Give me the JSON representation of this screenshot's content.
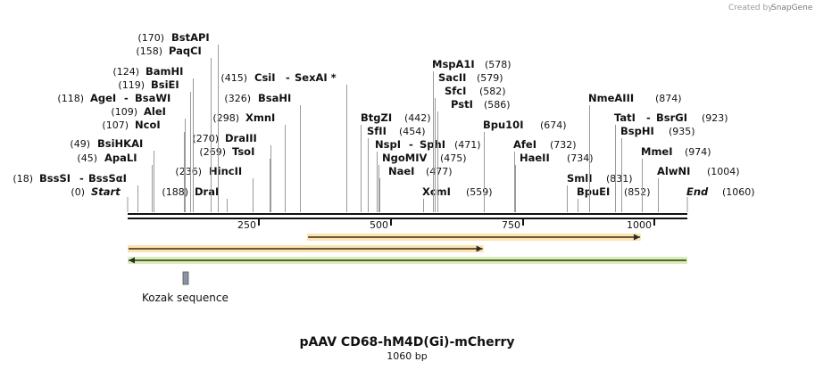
{
  "title": "pAAV CD68-hM4D(Gi)-mCherry",
  "length_label": "1060 bp",
  "total_bp": 1060,
  "branding": {
    "prefix": "Created by",
    "brand": "SnapGene"
  },
  "ticks": [
    "250",
    "500",
    "750",
    "1000"
  ],
  "ends": {
    "start": "Start",
    "start_pos": "(0)",
    "end": "End",
    "end_pos": "(1060)"
  },
  "sites": [
    {
      "name": "BssSI",
      "pos": "(18)",
      "bp": 18,
      "pair": "BssSαI"
    },
    {
      "name": "ApaLI",
      "pos": "(45)",
      "bp": 45
    },
    {
      "name": "BsiHKAI",
      "pos": "(49)",
      "bp": 49
    },
    {
      "name": "NcoI",
      "pos": "(107)",
      "bp": 107
    },
    {
      "name": "AleI",
      "pos": "(109)",
      "bp": 109
    },
    {
      "name": "AgeI",
      "pos": "(118)",
      "bp": 118,
      "pair": "BsaWI"
    },
    {
      "name": "BsiEI",
      "pos": "(119)",
      "bp": 119
    },
    {
      "name": "BamHI",
      "pos": "(124)",
      "bp": 124
    },
    {
      "name": "PaqCI",
      "pos": "(158)",
      "bp": 158
    },
    {
      "name": "BstAPI",
      "pos": "(170)",
      "bp": 170
    },
    {
      "name": "DraI",
      "pos": "(188)",
      "bp": 188
    },
    {
      "name": "HincII",
      "pos": "(236)",
      "bp": 236
    },
    {
      "name": "TsoI",
      "pos": "(269)",
      "bp": 269
    },
    {
      "name": "DraIII",
      "pos": "(270)",
      "bp": 270
    },
    {
      "name": "XmnI",
      "pos": "(298)",
      "bp": 298
    },
    {
      "name": "BsaHI",
      "pos": "(326)",
      "bp": 326
    },
    {
      "name": "CsiI",
      "pos": "(415)",
      "bp": 415,
      "pair": "SexAI *"
    },
    {
      "name": "BtgZI",
      "pos": "(442)",
      "bp": 442
    },
    {
      "name": "SfII",
      "pos": "(454)",
      "bp": 454
    },
    {
      "name": "NspI",
      "pos": "(471)",
      "bp": 471,
      "pair": "SphI"
    },
    {
      "name": "NgoMIV",
      "pos": "(475)",
      "bp": 475
    },
    {
      "name": "NaeI",
      "pos": "(477)",
      "bp": 477
    },
    {
      "name": "XcmI",
      "pos": "(559)",
      "bp": 559
    },
    {
      "name": "MspA1I",
      "pos": "(578)",
      "bp": 578
    },
    {
      "name": "SacII",
      "pos": "(579)",
      "bp": 579
    },
    {
      "name": "SfcI",
      "pos": "(582)",
      "bp": 582
    },
    {
      "name": "PstI",
      "pos": "(586)",
      "bp": 586
    },
    {
      "name": "Bpu10I",
      "pos": "(674)",
      "bp": 674
    },
    {
      "name": "AfeI",
      "pos": "(732)",
      "bp": 732
    },
    {
      "name": "HaeII",
      "pos": "(734)",
      "bp": 734
    },
    {
      "name": "SmlI",
      "pos": "(831)",
      "bp": 831
    },
    {
      "name": "BpuEI",
      "pos": "(852)",
      "bp": 852
    },
    {
      "name": "NmeAIII",
      "pos": "(874)",
      "bp": 874
    },
    {
      "name": "TatI",
      "pos": "(923)",
      "bp": 923,
      "pair": "BsrGI"
    },
    {
      "name": "BspHI",
      "pos": "(935)",
      "bp": 935
    },
    {
      "name": "MmeI",
      "pos": "(974)",
      "bp": 974
    },
    {
      "name": "AlwNI",
      "pos": "(1004)",
      "bp": 1004
    }
  ],
  "features": [
    {
      "name": "feature-orange-forward",
      "start_bp": 340,
      "end_bp": 972,
      "direction": "forward",
      "color": "#f2b14a",
      "fill": "#fbe3b2"
    },
    {
      "name": "feature-orange-forward-2",
      "start_bp": 0,
      "end_bp": 674,
      "direction": "forward",
      "color": "#f2b14a",
      "fill": "#fbe3b2"
    },
    {
      "name": "feature-green-reverse",
      "start_bp": 0,
      "end_bp": 1060,
      "direction": "reverse",
      "color": "#8fd14f",
      "fill": "#d6f0b8"
    }
  ],
  "kozak": {
    "label": "Kozak sequence",
    "color": "#8a93a6"
  }
}
